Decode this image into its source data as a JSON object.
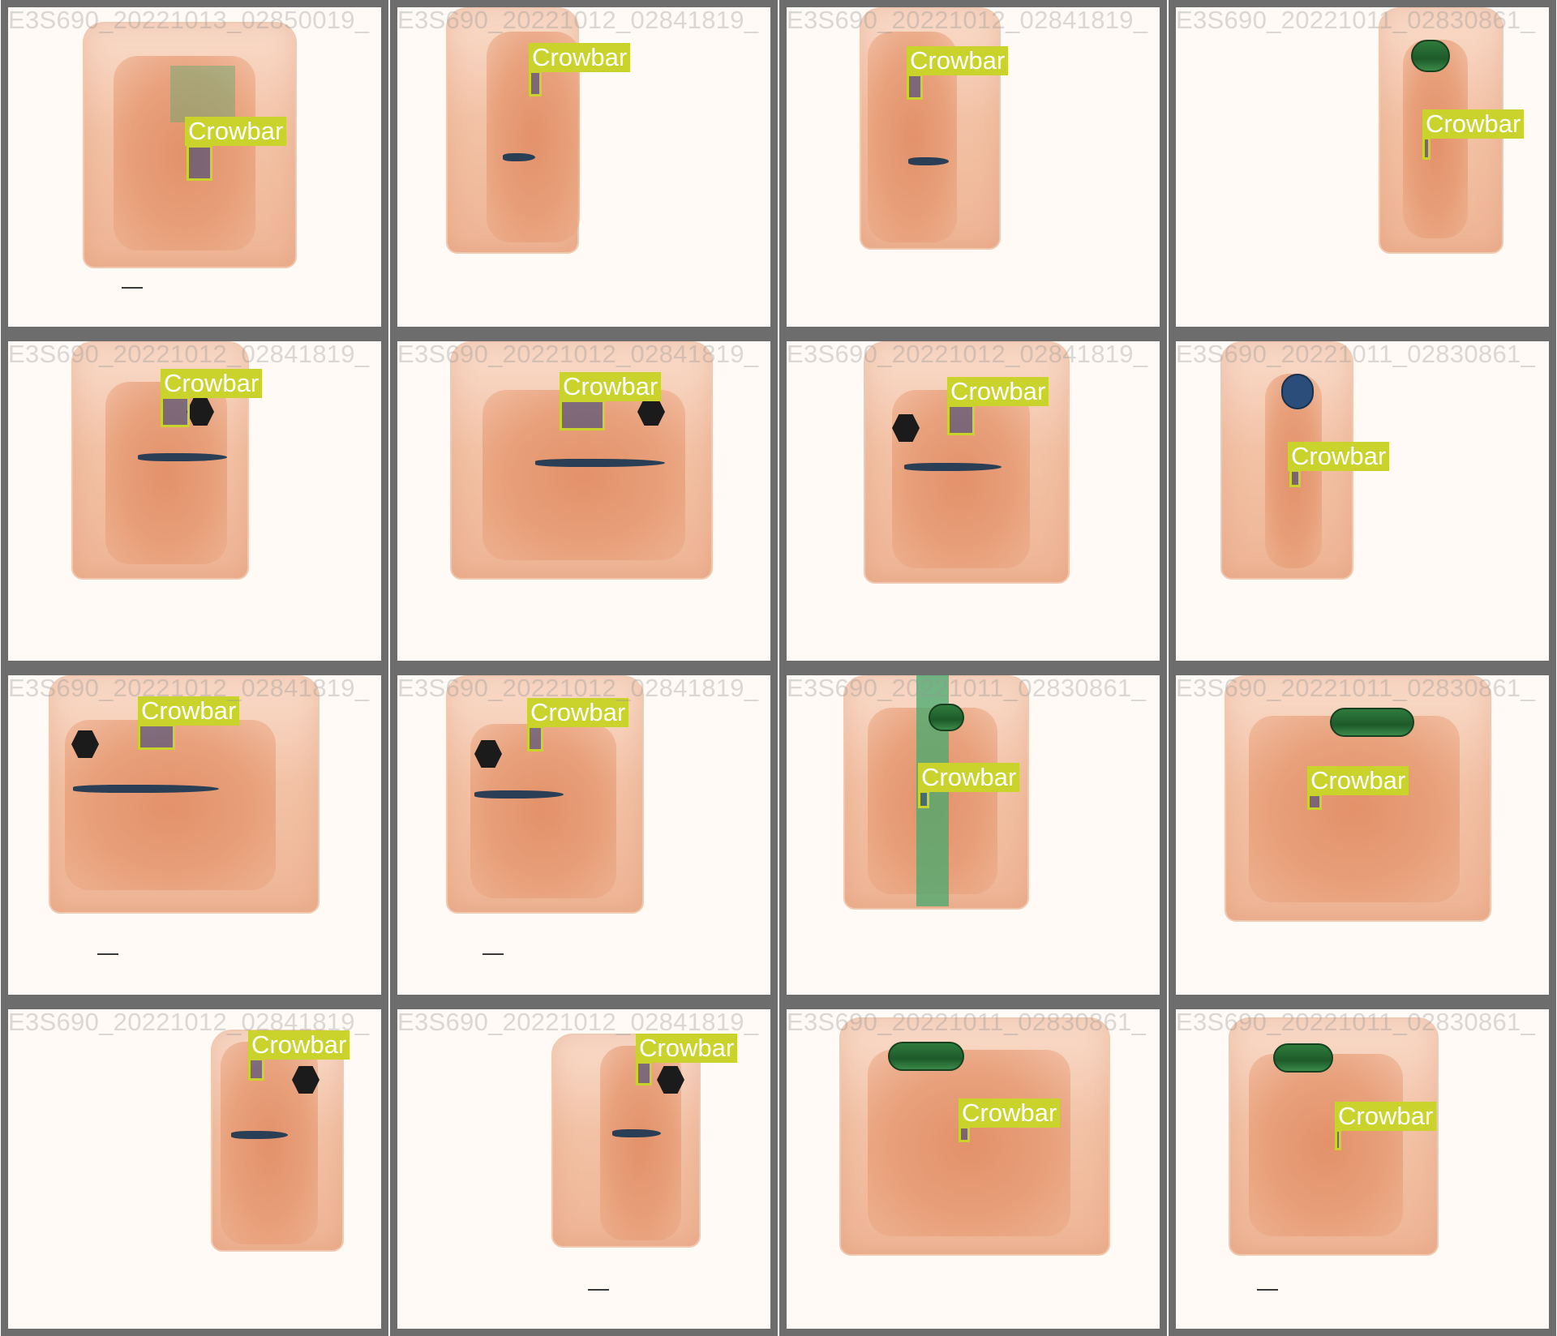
{
  "colors": {
    "tile_border": "#6d6d6d",
    "label_background": "#c9d32b",
    "label_text": "#ffffff",
    "filename_text": "#969696"
  },
  "tiles": [
    {
      "filename": "E3S690_20221013_02850019_",
      "label": "Crowbar"
    },
    {
      "filename": "E3S690_20221012_02841819_",
      "label": "Crowbar"
    },
    {
      "filename": "E3S690_20221012_02841819_",
      "label": "Crowbar"
    },
    {
      "filename": "E3S690_20221011_02830861_",
      "label": "Crowbar"
    },
    {
      "filename": "E3S690_20221012_02841819_",
      "label": "Crowbar"
    },
    {
      "filename": "E3S690_20221012_02841819_",
      "label": "Crowbar"
    },
    {
      "filename": "E3S690_20221012_02841819_",
      "label": "Crowbar"
    },
    {
      "filename": "E3S690_20221011_02830861_",
      "label": "Crowbar"
    },
    {
      "filename": "E3S690_20221012_02841819_",
      "label": "Crowbar"
    },
    {
      "filename": "E3S690_20221012_02841819_",
      "label": "Crowbar"
    },
    {
      "filename": "E3S690_20221011_02830861_",
      "label": "Crowbar"
    },
    {
      "filename": "E3S690_20221011_02830861_",
      "label": "Crowbar"
    },
    {
      "filename": "E3S690_20221012_02841819_",
      "label": "Crowbar"
    },
    {
      "filename": "E3S690_20221012_02841819_",
      "label": "Crowbar"
    },
    {
      "filename": "E3S690_20221011_02830861_",
      "label": "Crowbar"
    },
    {
      "filename": "E3S690_20221011_02830861_",
      "label": "Crowbar"
    }
  ]
}
